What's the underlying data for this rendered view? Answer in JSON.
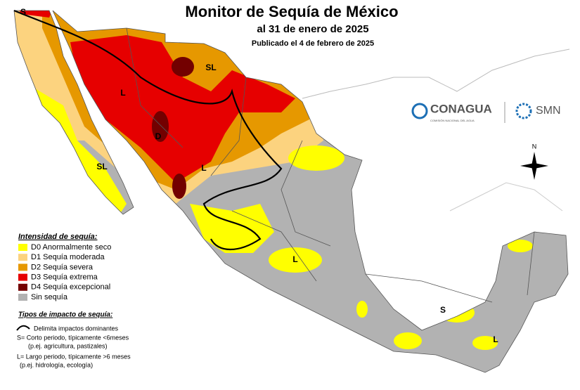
{
  "header": {
    "title": "Monitor de Sequía de México",
    "subtitle": "al 31 de enero de 2025",
    "published": "Publicado el 4 de febrero de 2025"
  },
  "logos": {
    "conagua": "CONAGUA",
    "conagua_sub": "COMISIÓN NACIONAL DEL AGUA",
    "smn": "SMN"
  },
  "compass": "N",
  "legend": {
    "title": "Intensidad de sequía:",
    "items": [
      {
        "label": "D0 Anormalmente seco",
        "color": "#ffff00"
      },
      {
        "label": "D1 Sequía moderada",
        "color": "#fcd37f"
      },
      {
        "label": "D2 Sequía severa",
        "color": "#e69800"
      },
      {
        "label": "D3 Sequía extrema",
        "color": "#e60000"
      },
      {
        "label": "D4 Sequía excepcional",
        "color": "#730000"
      },
      {
        "label": "Sin sequía",
        "color": "#b2b2b2"
      }
    ]
  },
  "impact": {
    "title": "Tipos de impacto de sequía:",
    "line": "Delimita impactos dominantes",
    "short": "S= Corto periodo, típicamente <6meses",
    "short_ex": "(p.ej. agricultura, pastizales)",
    "long": "L= Largo periodo, típicamente >6 meses",
    "long_ex": "(p.ej. hidrología, ecología)"
  },
  "map_labels": [
    "S",
    "SL",
    "L",
    "D",
    "SL",
    "L",
    "L",
    "S",
    "L"
  ]
}
